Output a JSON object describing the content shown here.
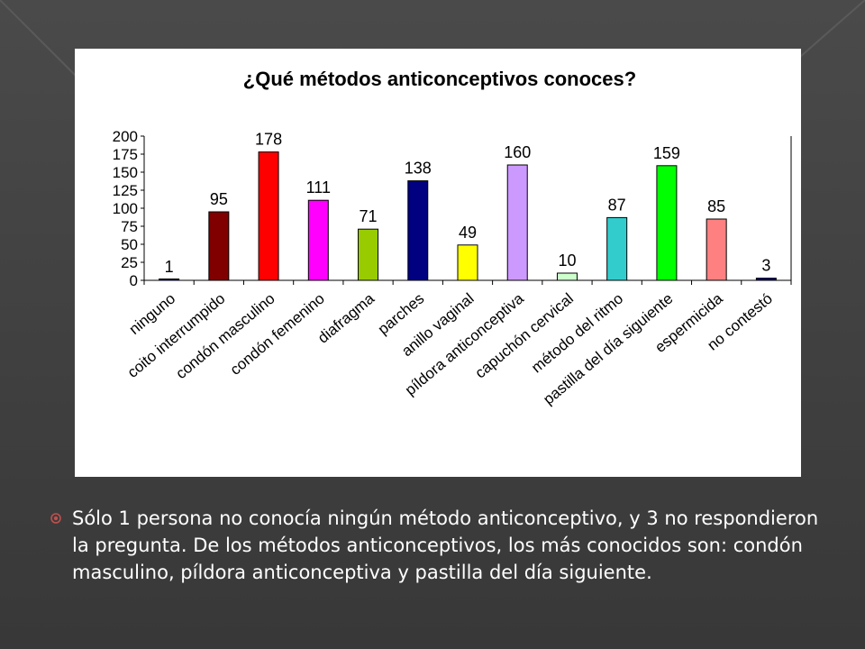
{
  "chart_data": {
    "type": "bar",
    "title": "¿Qué métodos anticonceptivos conoces?",
    "categories": [
      "ninguno",
      "coito interrumpido",
      "condón masculino",
      "condón femenino",
      "diafragma",
      "parches",
      "anillo vaginal",
      "píldora anticonceptiva",
      "capuchón cervical",
      "método del ritmo",
      "pastilla del día siguiente",
      "espermicida",
      "no contestó"
    ],
    "values": [
      1,
      95,
      178,
      111,
      71,
      138,
      49,
      160,
      10,
      87,
      159,
      85,
      3
    ],
    "colors": [
      "#000080",
      "#800000",
      "#ff0000",
      "#ff00ff",
      "#99cc00",
      "#000080",
      "#ffff00",
      "#cc99ff",
      "#ccffcc",
      "#33cccc",
      "#00ff00",
      "#ff8080",
      "#000080"
    ],
    "yticks": [
      0,
      25,
      50,
      75,
      100,
      125,
      150,
      175,
      200
    ],
    "ylim": [
      0,
      200
    ],
    "grid": false,
    "legend": "none"
  },
  "caption": {
    "text": "Sólo 1 persona no conocía ningún método anticonceptivo, y 3 no respondieron la pregunta. De los métodos anticonceptivos, los más conocidos son: condón masculino, píldora anticonceptiva y pastilla del día siguiente."
  }
}
